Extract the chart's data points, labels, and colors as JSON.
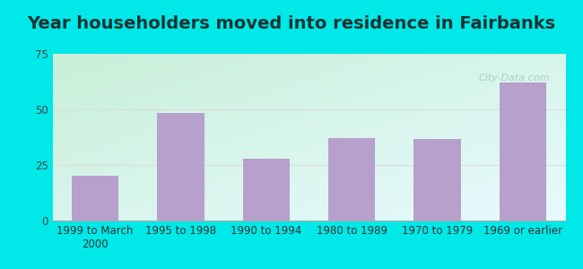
{
  "title": "Year householders moved into residence in Fairbanks",
  "categories": [
    "1999 to March\n2000",
    "1995 to 1998",
    "1990 to 1994",
    "1980 to 1989",
    "1970 to 1979",
    "1969 or earlier"
  ],
  "values": [
    20,
    48.5,
    28,
    37,
    36.5,
    62
  ],
  "bar_color": "#b8a0cc",
  "ylim": [
    0,
    75
  ],
  "yticks": [
    0,
    25,
    50,
    75
  ],
  "bg_topleft_color": "#c8f0d8",
  "bg_bottomright_color": "#e8faff",
  "outer_bg_color": "#00e8e8",
  "grid_color": "#dddddd",
  "title_fontsize": 14,
  "tick_fontsize": 8.5,
  "watermark_text": "City-Data.com",
  "watermark_color": "#a8c8c8"
}
